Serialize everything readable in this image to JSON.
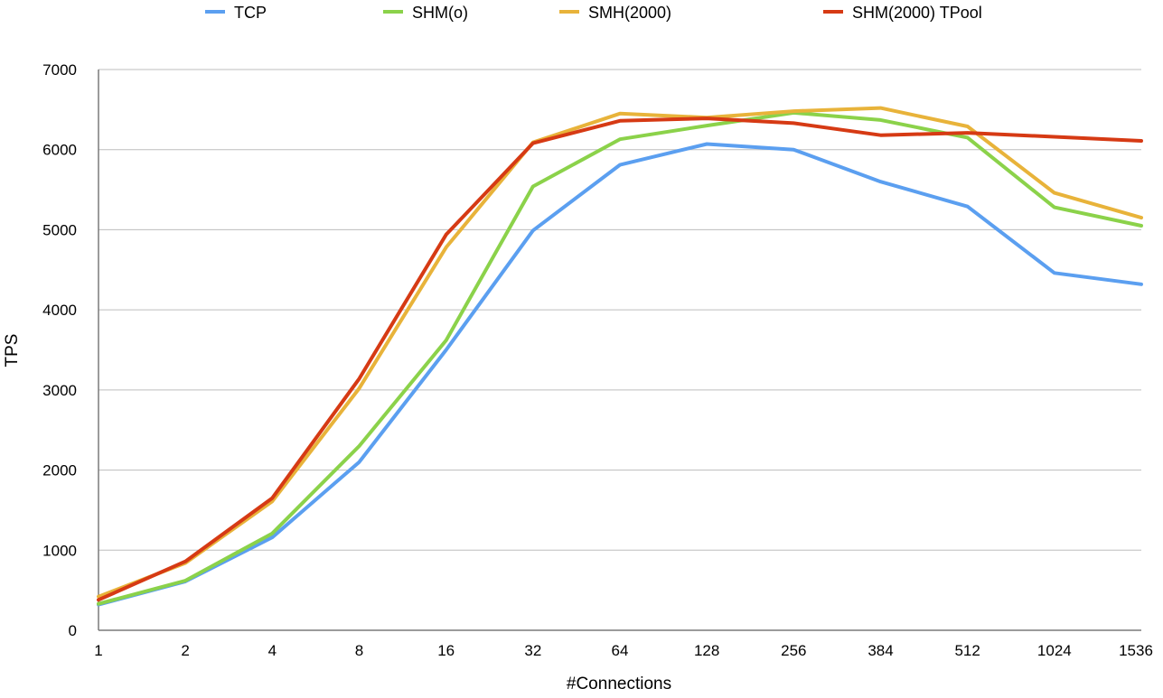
{
  "chart_data": {
    "type": "line",
    "title": "",
    "xlabel": "#Connections",
    "ylabel": "TPS",
    "ylim": [
      0,
      7000
    ],
    "yticks": [
      0,
      1000,
      2000,
      3000,
      4000,
      5000,
      6000,
      7000
    ],
    "grid": true,
    "legend_position": "top",
    "categories": [
      "1",
      "2",
      "4",
      "8",
      "16",
      "32",
      "64",
      "128",
      "256",
      "384",
      "512",
      "1024",
      "1536"
    ],
    "series": [
      {
        "name": "TCP",
        "color": "#5b9ff0",
        "values": [
          320,
          610,
          1160,
          2100,
          3500,
          4990,
          5810,
          6070,
          6000,
          5600,
          5290,
          4460,
          4320
        ]
      },
      {
        "name": "SHM(o)",
        "color": "#8bd24a",
        "values": [
          330,
          620,
          1210,
          2300,
          3620,
          5540,
          6130,
          6300,
          6460,
          6370,
          6150,
          5280,
          5050
        ]
      },
      {
        "name": "SMH(2000)",
        "color": "#e8b33a",
        "values": [
          420,
          840,
          1610,
          3020,
          4780,
          6090,
          6450,
          6400,
          6480,
          6520,
          6290,
          5460,
          5150
        ]
      },
      {
        "name": "SHM(2000) TPool",
        "color": "#d63a14",
        "values": [
          380,
          860,
          1650,
          3140,
          4940,
          6080,
          6360,
          6390,
          6330,
          6180,
          6210,
          6160,
          6110
        ]
      }
    ]
  }
}
